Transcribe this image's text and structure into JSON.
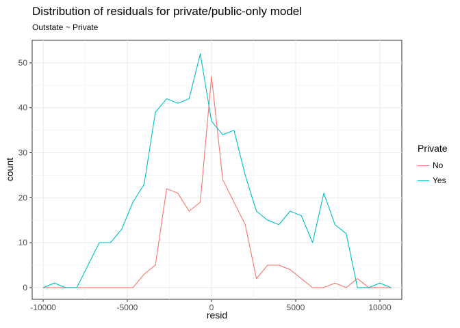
{
  "title": "Distribution of residuals for private/public-only model",
  "subtitle": "Outstate ~ Private",
  "chart_data": {
    "type": "line",
    "xlabel": "resid",
    "ylabel": "count",
    "xlim": [
      -10650,
      11300
    ],
    "ylim": [
      -2.6,
      55
    ],
    "x_ticks": [
      -10000,
      -5000,
      0,
      5000,
      10000
    ],
    "x_tick_labels": [
      "-10000",
      "-5000",
      "0",
      "5000",
      "10000"
    ],
    "y_ticks": [
      0,
      10,
      20,
      30,
      40,
      50
    ],
    "y_tick_labels": [
      "0",
      "10",
      "20",
      "30",
      "40",
      "50"
    ],
    "grid": true,
    "legend_position": "right",
    "legend_title": "Private",
    "x": [
      -10000,
      -9333,
      -8667,
      -8000,
      -7333,
      -6667,
      -6000,
      -5333,
      -4667,
      -4000,
      -3333,
      -2667,
      -2000,
      -1333,
      -667,
      0,
      667,
      1333,
      2000,
      2667,
      3333,
      4000,
      4667,
      5333,
      6000,
      6667,
      7333,
      8000,
      8667,
      9333,
      10000,
      10667
    ],
    "series": [
      {
        "name": "No",
        "color": "#F8766D",
        "values": [
          0,
          0,
          0,
          0,
          0,
          0,
          0,
          0,
          0,
          3,
          5,
          22,
          21,
          17,
          19,
          47,
          24,
          19,
          14,
          2,
          5,
          5,
          4,
          2,
          0,
          0,
          1,
          0,
          2,
          0,
          0,
          0
        ]
      },
      {
        "name": "Yes",
        "color": "#00BFC4",
        "values": [
          0,
          1,
          0,
          0,
          5,
          10,
          10,
          13,
          19,
          23,
          39,
          42,
          41,
          42,
          52,
          37,
          34,
          35,
          25,
          17,
          15,
          14,
          17,
          16,
          10,
          21,
          14,
          12,
          0,
          0,
          1,
          0
        ]
      }
    ]
  }
}
